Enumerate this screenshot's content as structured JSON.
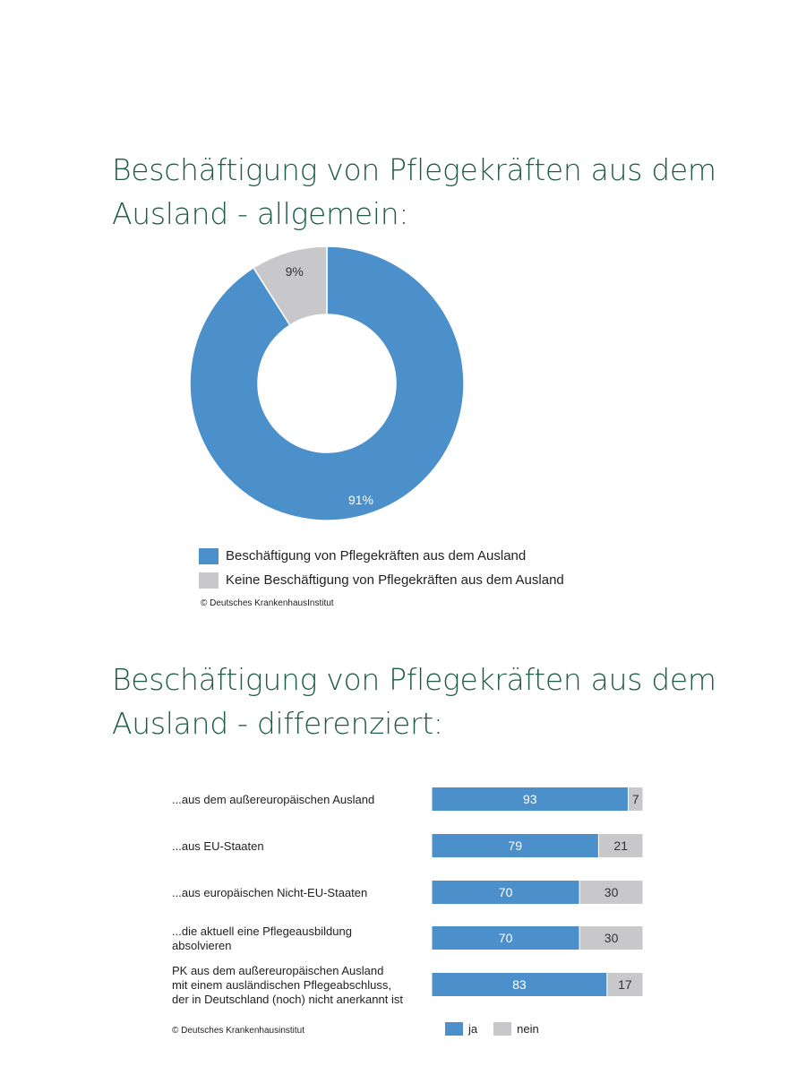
{
  "sections": {
    "general_title": "Beschäftigung von Pflegekräften aus dem Ausland - allgemein:",
    "differentiated_title": "Beschäftigung von Pflegekräften aus dem Ausland - differenziert:"
  },
  "colors": {
    "ja": "#4b8fcb",
    "nein": "#c8c8ca"
  },
  "chart_data": [
    {
      "type": "pie",
      "variant": "donut",
      "title": "Beschäftigung von Pflegekräften aus dem Ausland - allgemein:",
      "slices": [
        {
          "label": "Beschäftigung von Pflegekräften aus dem Ausland",
          "value": 91,
          "display": "91%"
        },
        {
          "label": "Keine Beschäftigung von Pflegekräften aus dem Ausland",
          "value": 9,
          "display": "9%"
        }
      ],
      "legend_position": "bottom",
      "credit": "© Deutsches KrankenhausInstitut"
    },
    {
      "type": "bar",
      "orientation": "horizontal",
      "stacked": true,
      "title": "Beschäftigung von Pflegekräften aus dem Ausland - differenziert:",
      "categories": [
        [
          "...aus dem außereuropäischen Ausland"
        ],
        [
          "...aus EU-Staaten"
        ],
        [
          "...aus europäischen Nicht-EU-Staaten"
        ],
        [
          "...die aktuell eine Pflegeausbildung",
          "absolvieren"
        ],
        [
          "PK aus dem außereuropäischen Ausland",
          "mit einem ausländischen Pflegeabschluss,",
          "der in Deutschland (noch) nicht anerkannt ist"
        ]
      ],
      "series": [
        {
          "name": "ja",
          "values": [
            93,
            79,
            70,
            70,
            83
          ]
        },
        {
          "name": "nein",
          "values": [
            7,
            21,
            30,
            30,
            17
          ]
        }
      ],
      "xlim": [
        0,
        100
      ],
      "legend_position": "bottom",
      "credit": "© Deutsches Krankenhausinstitut"
    }
  ]
}
